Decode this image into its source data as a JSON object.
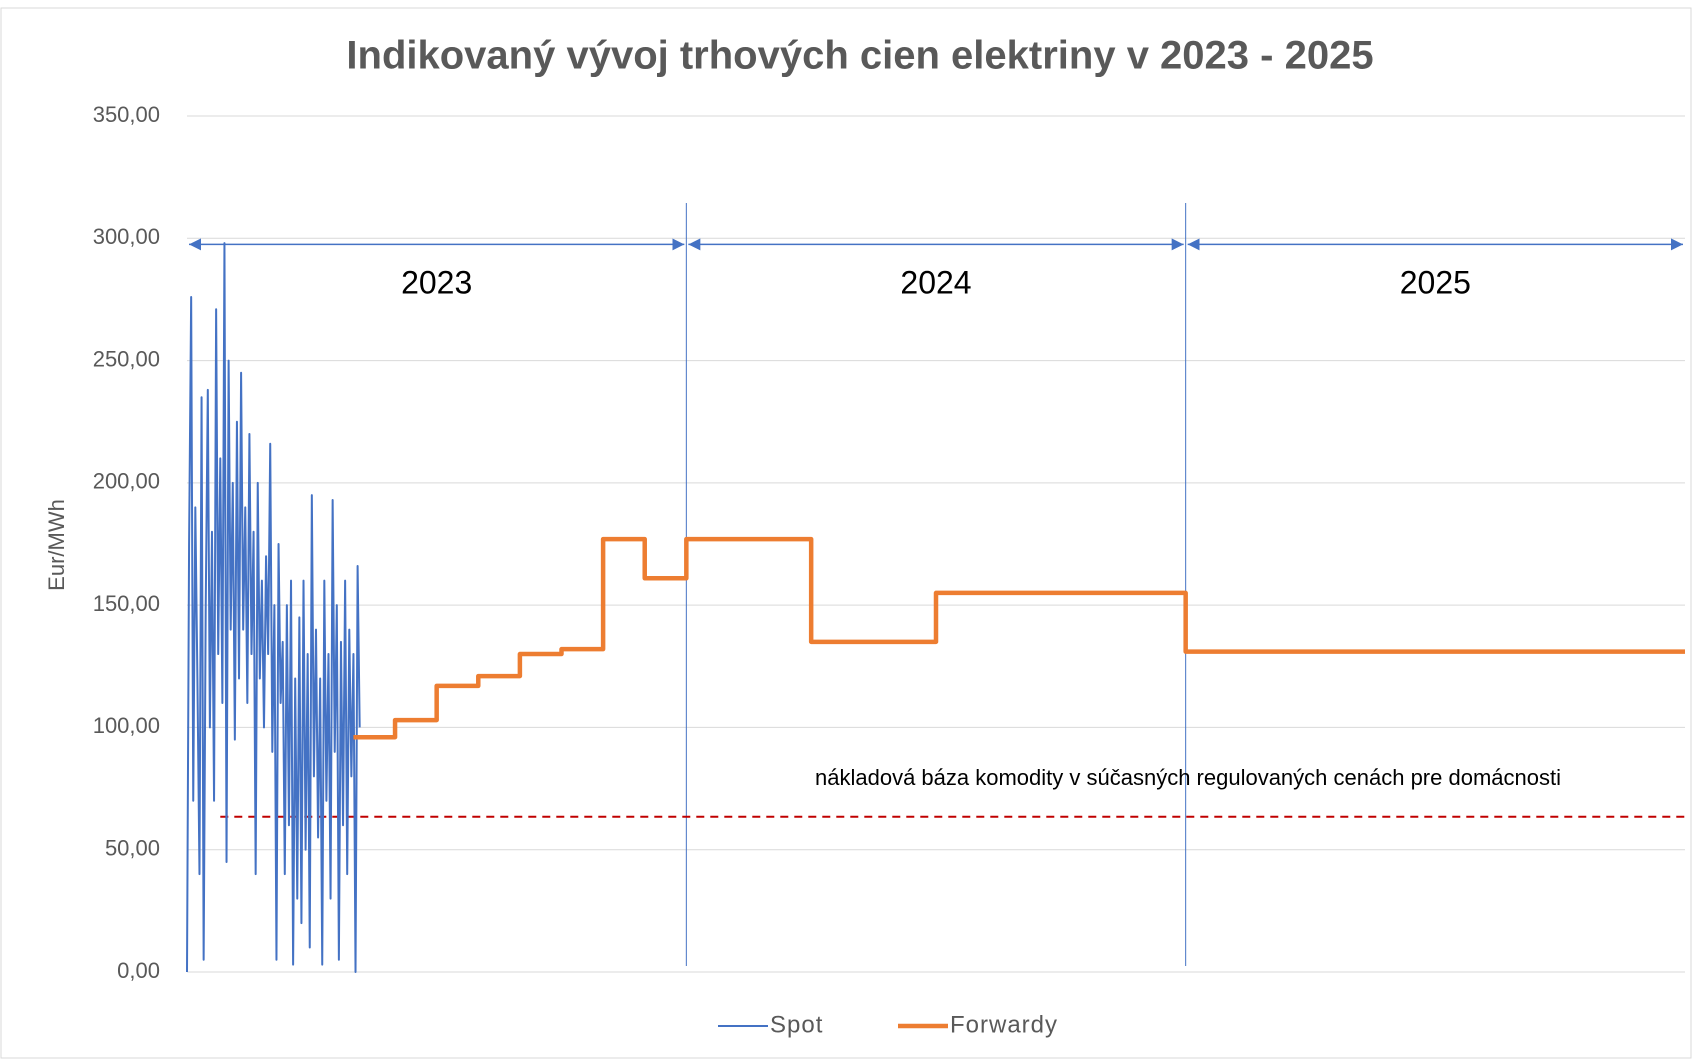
{
  "chart_data": {
    "type": "line",
    "title": "Indikovaný vývoj trhových cien elektriny v 2023 - 2025",
    "y_label": "Eur/MWh",
    "xlim": [
      0,
      36
    ],
    "ylim": [
      0,
      350
    ],
    "yticks": [
      {
        "value": 0,
        "label": "0,00"
      },
      {
        "value": 50,
        "label": "50,00"
      },
      {
        "value": 100,
        "label": "100,00"
      },
      {
        "value": 150,
        "label": "150,00"
      },
      {
        "value": 200,
        "label": "200,00"
      },
      {
        "value": 250,
        "label": "250,00"
      },
      {
        "value": 300,
        "label": "300,00"
      },
      {
        "value": 350,
        "label": "350,00"
      }
    ],
    "grid": true,
    "legend": "bottom",
    "series": [
      {
        "name": "Spot",
        "color": "#4472c4",
        "step": false,
        "x": [
          0,
          0.05,
          0.1,
          0.15,
          0.2,
          0.25,
          0.3,
          0.35,
          0.4,
          0.45,
          0.5,
          0.55,
          0.6,
          0.65,
          0.7,
          0.75,
          0.8,
          0.85,
          0.9,
          0.95,
          1,
          1.05,
          1.1,
          1.15,
          1.2,
          1.25,
          1.3,
          1.35,
          1.4,
          1.45,
          1.5,
          1.55,
          1.6,
          1.65,
          1.7,
          1.75,
          1.8,
          1.85,
          1.9,
          1.95,
          2,
          2.05,
          2.1,
          2.15,
          2.2,
          2.25,
          2.3,
          2.35,
          2.4,
          2.45,
          2.5,
          2.55,
          2.6,
          2.65,
          2.7,
          2.75,
          2.8,
          2.85,
          2.9,
          2.95,
          3,
          3.05,
          3.1,
          3.15,
          3.2,
          3.25,
          3.3,
          3.35,
          3.4,
          3.45,
          3.5,
          3.55,
          3.6,
          3.65,
          3.7,
          3.75,
          3.8,
          3.85,
          3.9,
          3.95,
          4,
          4.05,
          4.1,
          4.15
        ],
        "values": [
          0,
          175,
          276,
          70,
          190,
          120,
          40,
          235,
          5,
          150,
          238,
          100,
          180,
          70,
          271,
          130,
          210,
          110,
          298,
          45,
          250,
          140,
          200,
          95,
          225,
          120,
          245,
          140,
          190,
          110,
          220,
          130,
          180,
          40,
          200,
          120,
          160,
          100,
          170,
          130,
          216,
          90,
          150,
          5,
          175,
          110,
          135,
          40,
          150,
          60,
          160,
          3,
          120,
          30,
          145,
          20,
          160,
          50,
          130,
          10,
          195,
          80,
          140,
          55,
          120,
          3,
          160,
          70,
          130,
          30,
          193,
          90,
          150,
          5,
          135,
          60,
          160,
          40,
          140,
          80,
          130,
          0,
          166,
          100
        ]
      },
      {
        "name": "Forwardy",
        "color": "#ed7d31",
        "step": true,
        "x": [
          4,
          5,
          6,
          7,
          8,
          9,
          10,
          11,
          12,
          15,
          18,
          24,
          36
        ],
        "values": [
          96,
          103,
          117,
          121,
          130,
          132,
          177,
          161,
          177,
          135,
          155,
          131,
          131
        ]
      }
    ],
    "reference_line": {
      "value": 63.5,
      "color": "#c00000",
      "label": "nákladová báza komodity v súčasných regulovaných cenách pre domácnosti"
    },
    "periods": [
      {
        "label": "2023",
        "start": 0,
        "end": 12
      },
      {
        "label": "2024",
        "start": 12,
        "end": 24
      },
      {
        "label": "2025",
        "start": 24,
        "end": 36
      }
    ]
  }
}
